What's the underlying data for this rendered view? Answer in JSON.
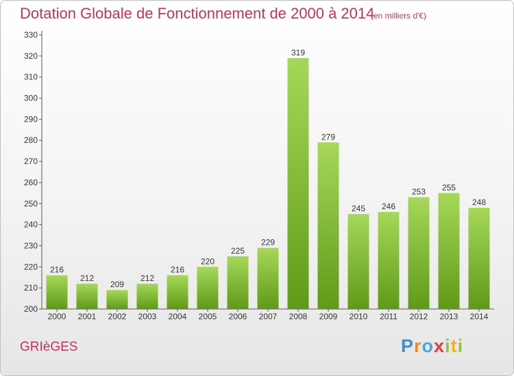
{
  "title": "Dotation Globale de Fonctionnement de 2000 à 2014",
  "subtitle": "(en milliers d'€)",
  "commune": "GRIèGES",
  "logo": {
    "letters": [
      "P",
      "r",
      "o",
      "x",
      "i",
      "t",
      "i"
    ]
  },
  "colors": {
    "title": "#c4345a",
    "bar_top": "#a6d85a",
    "bar_bottom": "#5f9a17"
  },
  "chart_data": {
    "type": "bar",
    "title": "Dotation Globale de Fonctionnement de 2000 à 2014",
    "subtitle": "(en milliers d'€)",
    "xlabel": "",
    "ylabel": "",
    "categories": [
      "2000",
      "2001",
      "2002",
      "2003",
      "2004",
      "2005",
      "2006",
      "2007",
      "2008",
      "2009",
      "2010",
      "2011",
      "2012",
      "2013",
      "2014"
    ],
    "values": [
      216,
      212,
      209,
      212,
      216,
      220,
      225,
      229,
      319,
      279,
      245,
      246,
      253,
      255,
      248
    ],
    "ylim": [
      200,
      330
    ],
    "yticks": [
      200,
      210,
      220,
      230,
      240,
      250,
      260,
      270,
      280,
      290,
      300,
      310,
      320,
      330
    ],
    "grid": false,
    "legend": "none"
  }
}
